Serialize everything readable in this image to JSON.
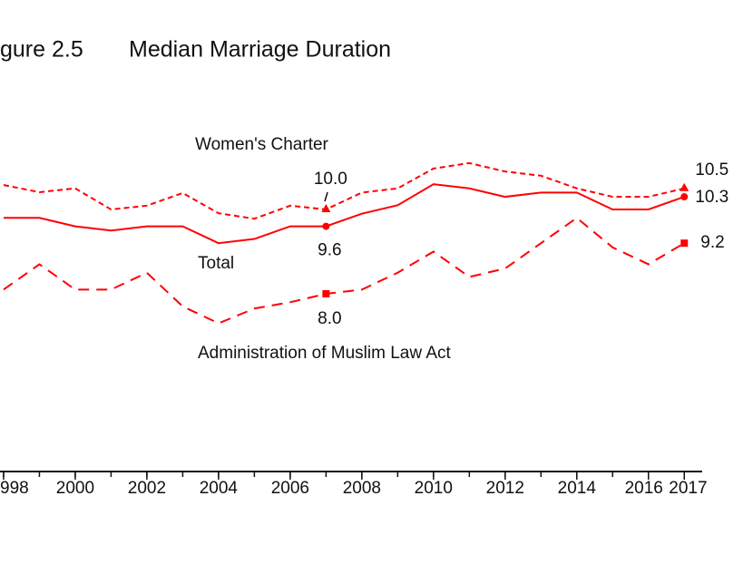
{
  "chart_data": {
    "type": "line",
    "figure_label": "gure 2.5",
    "title": "Median Marriage Duration",
    "x": [
      1998,
      1999,
      2000,
      2001,
      2002,
      2003,
      2004,
      2005,
      2006,
      2007,
      2008,
      2009,
      2010,
      2011,
      2012,
      2013,
      2014,
      2015,
      2016,
      2017
    ],
    "xlim": [
      1997.9,
      2017.5
    ],
    "xticks": [
      {
        "value": 1998,
        "label": "998"
      },
      2000,
      2002,
      2004,
      2006,
      2008,
      2010,
      2012,
      2014,
      2016,
      2017
    ],
    "ylim": [
      4,
      12
    ],
    "grid": false,
    "series": [
      {
        "name": "Women's Charter",
        "color": "#ff0000",
        "dash": "6,4",
        "marker": "triangle",
        "values": [
          10.58,
          10.41,
          10.5,
          10.0,
          10.09,
          10.39,
          9.91,
          9.78,
          10.09,
          10.0,
          10.4,
          10.5,
          10.97,
          11.1,
          10.9,
          10.8,
          10.5,
          10.3,
          10.3,
          10.5
        ],
        "value_labels": [
          null,
          null,
          null,
          null,
          null,
          null,
          null,
          null,
          null,
          "10.0",
          null,
          null,
          null,
          null,
          null,
          null,
          null,
          null,
          null,
          "10.5"
        ]
      },
      {
        "name": "Total",
        "color": "#ff0000",
        "dash": "none",
        "marker": "circle",
        "values": [
          9.8,
          9.8,
          9.6,
          9.5,
          9.6,
          9.6,
          9.2,
          9.3,
          9.6,
          9.6,
          9.9,
          10.1,
          10.6,
          10.5,
          10.3,
          10.4,
          10.4,
          10.0,
          10.0,
          10.3
        ],
        "value_labels": [
          null,
          null,
          null,
          null,
          null,
          null,
          null,
          null,
          null,
          "9.6",
          null,
          null,
          null,
          null,
          null,
          null,
          null,
          null,
          null,
          "10.3"
        ]
      },
      {
        "name": "Administration of Muslim Law Act",
        "color": "#ff0000",
        "dash": "12,8",
        "marker": "square",
        "values": [
          8.1,
          8.7,
          8.1,
          8.1,
          8.5,
          7.7,
          7.3,
          7.65,
          7.8,
          8.0,
          8.1,
          8.5,
          9.0,
          8.4,
          8.6,
          9.2,
          9.8,
          9.1,
          8.7,
          9.2
        ],
        "value_labels": [
          null,
          null,
          null,
          null,
          null,
          null,
          null,
          null,
          null,
          "8.0",
          null,
          null,
          null,
          null,
          null,
          null,
          null,
          null,
          null,
          "9.2"
        ]
      }
    ]
  }
}
